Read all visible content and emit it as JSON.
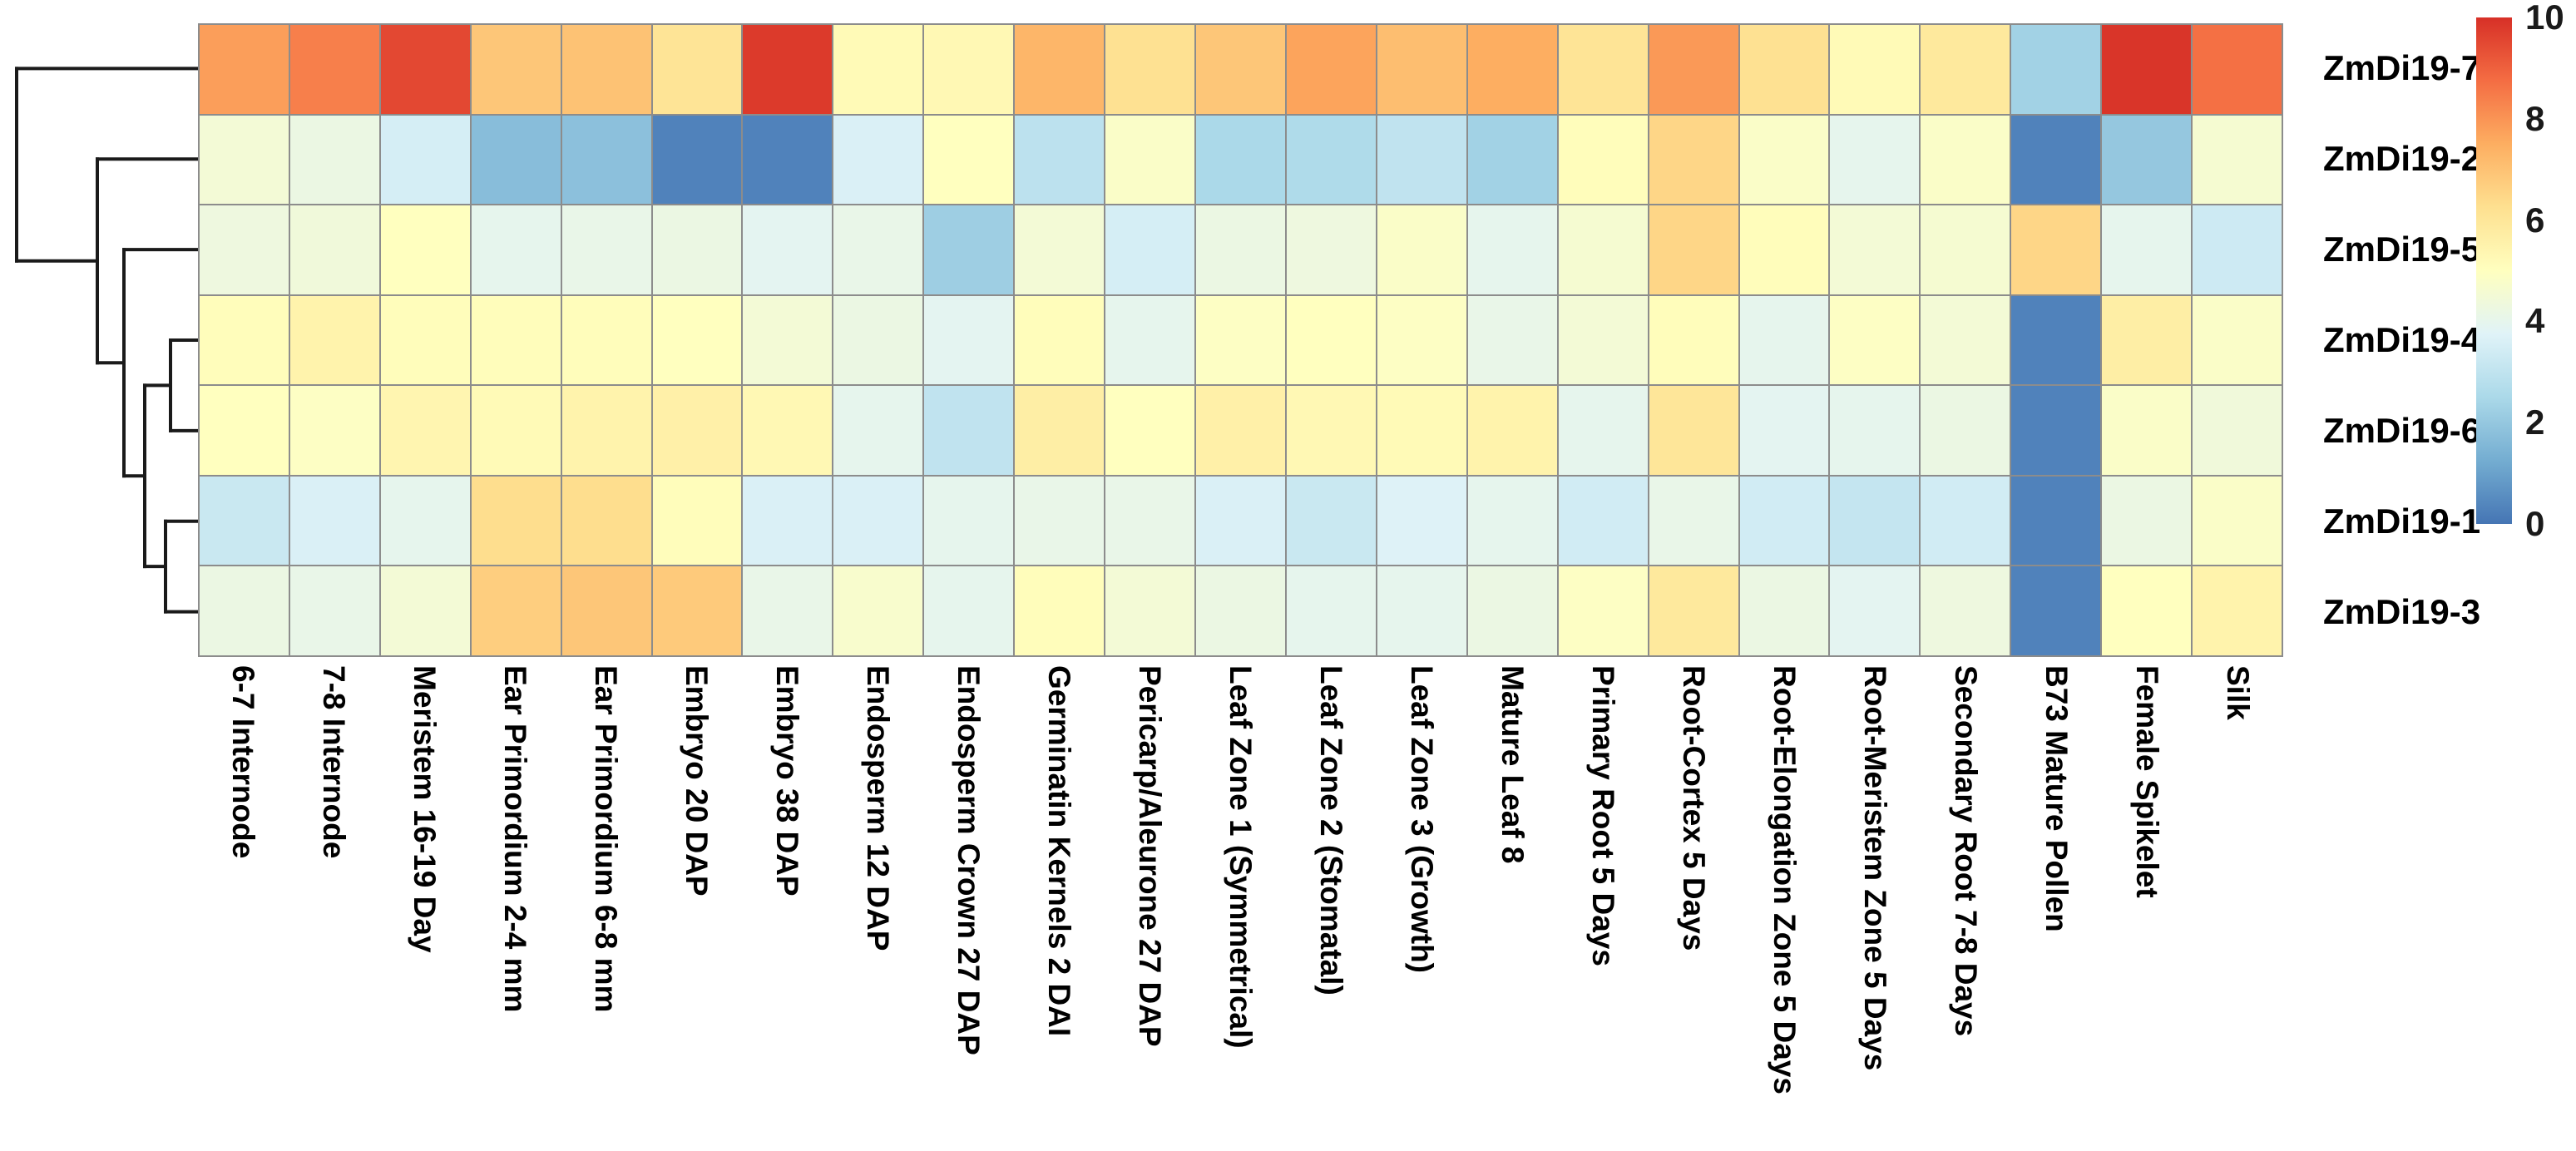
{
  "chart_data": {
    "type": "heatmap",
    "title": "",
    "xlabel": "",
    "ylabel": "",
    "columns": [
      "6-7 Internode",
      "7-8 Internode",
      "Meristem 16-19 Day",
      "Ear Primordium 2-4 mm",
      "Ear Primordium 6-8 mm",
      "Embryo 20 DAP",
      "Embryo 38 DAP",
      "Endosperm 12 DAP",
      "Endosperm Crown 27 DAP",
      "Germinatin Kernels 2 DAI",
      "Pericarp/Aleurone 27 DAP",
      "Leaf Zone 1 (Symmetrical)",
      "Leaf Zone 2 (Stomatal)",
      "Leaf Zone 3 (Growth)",
      "Mature Leaf 8",
      "Primary Root 5 Days",
      "Root-Cortex 5 Days",
      "Root-Elongation Zone 5 Days",
      "Root-Meristem Zone 5 Days",
      "Secondary Root 7-8 Days",
      "B73 Mature Pollen",
      "Female Spikelet",
      "Silk"
    ],
    "rows": [
      "ZmDi19-7",
      "ZmDi19-2",
      "ZmDi19-5",
      "ZmDi19-4",
      "ZmDi19-6",
      "ZmDi19-1",
      "ZmDi19-3"
    ],
    "series": [
      {
        "name": "ZmDi19-7",
        "values": [
          7.8,
          8.4,
          9.5,
          6.9,
          7.0,
          6.1,
          9.8,
          5.2,
          5.3,
          7.3,
          6.2,
          6.9,
          7.7,
          7.1,
          7.5,
          6.1,
          7.9,
          6.2,
          5.2,
          5.9,
          2.3,
          9.9,
          8.7
        ]
      },
      {
        "name": "ZmDi19-2",
        "values": [
          4.5,
          4.2,
          3.5,
          1.7,
          1.8,
          0.3,
          0.3,
          3.6,
          5.0,
          2.9,
          4.8,
          2.5,
          2.6,
          3.0,
          2.3,
          5.1,
          6.5,
          4.8,
          4.0,
          4.8,
          0.3,
          2.0,
          4.6
        ]
      },
      {
        "name": "ZmDi19-5",
        "values": [
          4.3,
          4.4,
          5.0,
          4.0,
          4.1,
          4.2,
          3.9,
          4.1,
          2.2,
          4.5,
          3.5,
          4.2,
          4.3,
          4.8,
          4.0,
          4.6,
          6.5,
          5.1,
          4.5,
          4.6,
          6.5,
          4.0,
          3.3
        ]
      },
      {
        "name": "ZmDi19-4",
        "values": [
          5.1,
          5.5,
          5.1,
          5.1,
          5.1,
          5.0,
          4.5,
          4.2,
          3.9,
          5.1,
          4.0,
          4.9,
          5.0,
          4.9,
          4.1,
          4.5,
          5.1,
          4.0,
          4.9,
          4.5,
          0.3,
          5.7,
          4.8
        ]
      },
      {
        "name": "ZmDi19-6",
        "values": [
          5.0,
          4.9,
          5.4,
          5.2,
          5.5,
          5.6,
          5.3,
          4.0,
          3.0,
          5.7,
          5.0,
          5.6,
          5.3,
          5.2,
          5.5,
          4.0,
          6.0,
          3.9,
          4.0,
          4.2,
          0.3,
          4.8,
          4.4
        ]
      },
      {
        "name": "ZmDi19-1",
        "values": [
          3.2,
          3.6,
          4.0,
          6.3,
          6.3,
          5.1,
          3.6,
          3.6,
          4.0,
          4.1,
          4.1,
          3.6,
          3.2,
          3.7,
          4.0,
          3.4,
          4.1,
          3.4,
          3.1,
          3.4,
          0.3,
          4.2,
          4.8
        ]
      },
      {
        "name": "ZmDi19-3",
        "values": [
          4.2,
          4.1,
          4.5,
          6.7,
          6.9,
          6.8,
          4.1,
          4.7,
          4.0,
          5.1,
          4.5,
          4.2,
          4.0,
          4.0,
          4.2,
          4.9,
          5.9,
          4.2,
          3.9,
          4.3,
          0.3,
          5.0,
          5.5
        ]
      }
    ],
    "value_range": [
      0,
      10
    ],
    "colorbar_ticks": [
      "10",
      "8",
      "6",
      "4",
      "2",
      "0"
    ],
    "colorbar_tick_values": [
      10,
      8,
      6,
      4,
      2,
      0
    ],
    "colormap": {
      "name": "RdYlBu_r",
      "anchors": [
        "#4575b4",
        "#74add1",
        "#abd9e9",
        "#e0f3f8",
        "#ffffbf",
        "#fee090",
        "#fdae61",
        "#f46d43",
        "#d73027"
      ]
    },
    "grid": true,
    "grid_line_color": "#8c8c8c",
    "legend_position": "right-colorbar",
    "dendrogram": {
      "side": "left",
      "line_color": "#1a1a1a",
      "topology": "(ZmDi19-7,(ZmDi19-2,(ZmDi19-5,((ZmDi19-4,ZmDi19-6),(ZmDi19-1,ZmDi19-3)))))"
    }
  }
}
